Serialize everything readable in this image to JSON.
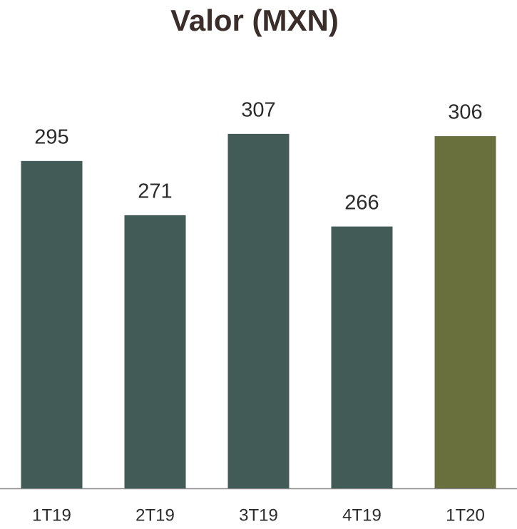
{
  "chart_data": {
    "type": "bar",
    "title": "Valor (MXN)",
    "categories": [
      "1T19",
      "2T19",
      "3T19",
      "4T19",
      "1T20"
    ],
    "values": [
      295,
      271,
      307,
      266,
      306
    ],
    "colors": [
      "#435b57",
      "#435b57",
      "#435b57",
      "#435b57",
      "#69703d"
    ],
    "ylim": [
      150,
      330
    ]
  }
}
